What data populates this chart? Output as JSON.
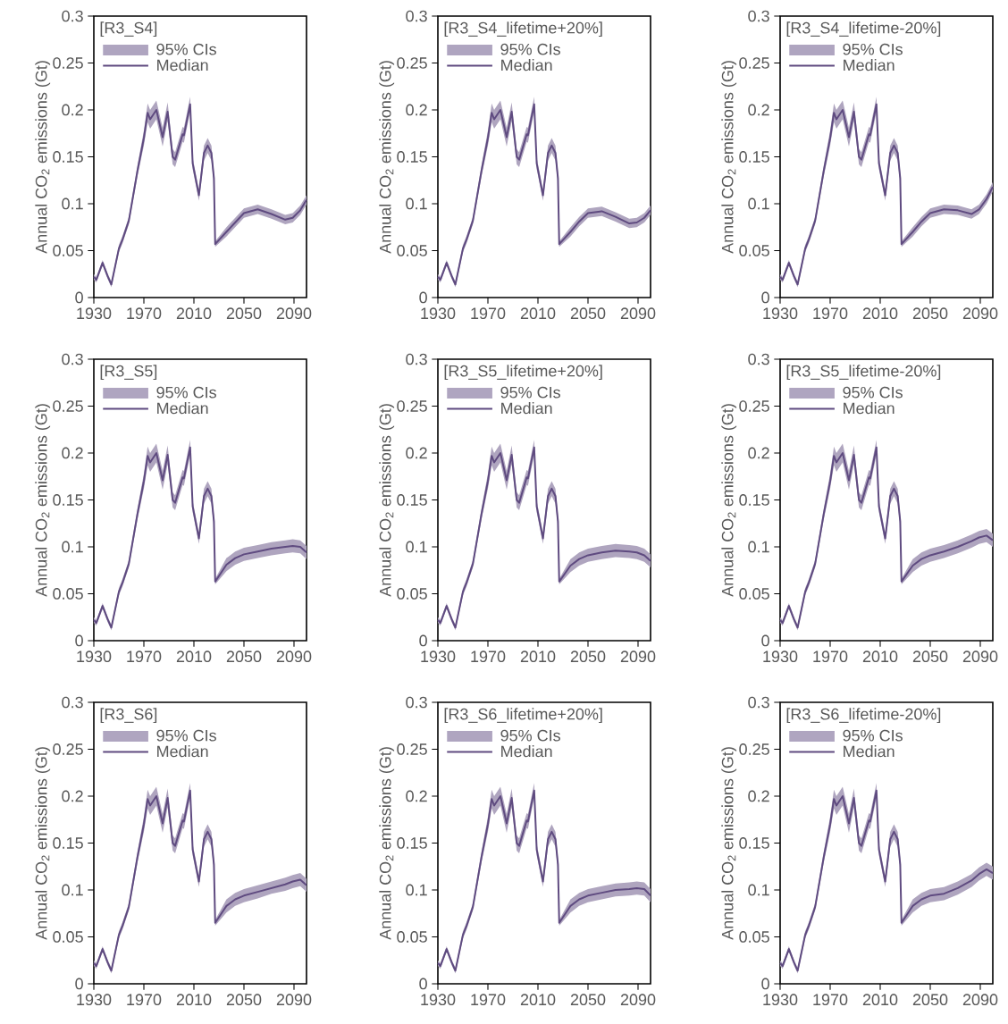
{
  "chart_data": [
    {
      "type": "line",
      "title": "[R3_S4]",
      "ylabel": "Annual CO$_{2}$ emissions (Gt)",
      "annotations": [
        "95% CIs"
      ],
      "legend": "top left",
      "xlim": [
        1930,
        2100
      ],
      "ylim": [
        0,
        0.3
      ],
      "xticks": [
        1930,
        1970,
        2010,
        2050,
        2090
      ],
      "yticks": [
        0,
        0.05,
        0.1,
        0.15,
        0.2,
        0.25,
        0.3
      ],
      "x": [
        1930,
        1932,
        1937,
        1941,
        1944,
        1950,
        1953,
        1958,
        1965,
        1970,
        1973,
        1975,
        1980,
        1985,
        1989,
        1993,
        1995,
        2001,
        2002,
        2007,
        2009,
        2014,
        2018,
        2021,
        2024,
        2026,
        2027,
        2036,
        2043,
        2050,
        2061,
        2072,
        2083,
        2089,
        2095,
        2100
      ],
      "series": [
        {
          "name": "Median",
          "color": "#5f4b80",
          "values": [
            0.022,
            0.019,
            0.037,
            0.023,
            0.014,
            0.052,
            0.062,
            0.082,
            0.136,
            0.17,
            0.197,
            0.19,
            0.2,
            0.171,
            0.198,
            0.15,
            0.147,
            0.174,
            0.173,
            0.206,
            0.143,
            0.109,
            0.154,
            0.162,
            0.154,
            0.127,
            0.057,
            0.07,
            0.08,
            0.09,
            0.094,
            0.089,
            0.083,
            0.085,
            0.093,
            0.104
          ],
          "lower": [
            0.019,
            0.016,
            0.034,
            0.02,
            0.011,
            0.048,
            0.058,
            0.078,
            0.13,
            0.162,
            0.187,
            0.18,
            0.19,
            0.161,
            0.188,
            0.142,
            0.139,
            0.166,
            0.165,
            0.198,
            0.137,
            0.103,
            0.146,
            0.154,
            0.146,
            0.121,
            0.054,
            0.065,
            0.075,
            0.085,
            0.089,
            0.084,
            0.078,
            0.08,
            0.088,
            0.099
          ],
          "upper": [
            0.025,
            0.022,
            0.04,
            0.026,
            0.017,
            0.056,
            0.066,
            0.086,
            0.142,
            0.178,
            0.207,
            0.2,
            0.21,
            0.181,
            0.208,
            0.158,
            0.155,
            0.182,
            0.181,
            0.214,
            0.149,
            0.115,
            0.162,
            0.17,
            0.162,
            0.133,
            0.06,
            0.075,
            0.085,
            0.095,
            0.099,
            0.094,
            0.088,
            0.09,
            0.098,
            0.109
          ]
        }
      ]
    },
    {
      "type": "line",
      "title": "[R3_S4_lifetime+20%]",
      "ylabel": "Annual CO$_{2}$ emissions (Gt)",
      "annotations": [
        "95% CIs"
      ],
      "legend": "top left",
      "xlim": [
        1930,
        2100
      ],
      "ylim": [
        0,
        0.3
      ],
      "xticks": [
        1930,
        1970,
        2010,
        2050,
        2090
      ],
      "yticks": [
        0,
        0.05,
        0.1,
        0.15,
        0.2,
        0.25,
        0.3
      ],
      "x": [
        1930,
        1932,
        1937,
        1941,
        1944,
        1950,
        1953,
        1958,
        1965,
        1970,
        1973,
        1975,
        1980,
        1985,
        1989,
        1993,
        1995,
        2001,
        2002,
        2007,
        2009,
        2014,
        2018,
        2021,
        2024,
        2026,
        2027,
        2036,
        2043,
        2050,
        2061,
        2072,
        2083,
        2089,
        2095,
        2100
      ],
      "series": [
        {
          "name": "Median",
          "color": "#5f4b80",
          "values": [
            0.022,
            0.019,
            0.037,
            0.023,
            0.014,
            0.052,
            0.062,
            0.082,
            0.136,
            0.17,
            0.197,
            0.19,
            0.2,
            0.171,
            0.198,
            0.15,
            0.147,
            0.174,
            0.173,
            0.206,
            0.143,
            0.109,
            0.154,
            0.162,
            0.154,
            0.127,
            0.057,
            0.07,
            0.081,
            0.09,
            0.092,
            0.086,
            0.079,
            0.08,
            0.085,
            0.093
          ],
          "lower": [
            0.019,
            0.016,
            0.034,
            0.02,
            0.011,
            0.048,
            0.058,
            0.078,
            0.13,
            0.162,
            0.187,
            0.18,
            0.19,
            0.161,
            0.188,
            0.142,
            0.139,
            0.166,
            0.165,
            0.198,
            0.137,
            0.103,
            0.146,
            0.154,
            0.146,
            0.121,
            0.054,
            0.065,
            0.076,
            0.085,
            0.087,
            0.081,
            0.074,
            0.075,
            0.08,
            0.088
          ],
          "upper": [
            0.025,
            0.022,
            0.04,
            0.026,
            0.017,
            0.056,
            0.066,
            0.086,
            0.142,
            0.178,
            0.207,
            0.2,
            0.21,
            0.181,
            0.208,
            0.158,
            0.155,
            0.182,
            0.181,
            0.214,
            0.149,
            0.115,
            0.162,
            0.17,
            0.162,
            0.133,
            0.06,
            0.075,
            0.086,
            0.095,
            0.097,
            0.091,
            0.084,
            0.085,
            0.09,
            0.098
          ]
        }
      ]
    },
    {
      "type": "line",
      "title": "[R3_S4_lifetime-20%]",
      "ylabel": "Annual CO$_{2}$ emissions (Gt)",
      "annotations": [
        "95% CIs"
      ],
      "legend": "top left",
      "xlim": [
        1930,
        2100
      ],
      "ylim": [
        0,
        0.3
      ],
      "xticks": [
        1930,
        1970,
        2010,
        2050,
        2090
      ],
      "yticks": [
        0,
        0.05,
        0.1,
        0.15,
        0.2,
        0.25,
        0.3
      ],
      "x": [
        1930,
        1932,
        1937,
        1941,
        1944,
        1950,
        1953,
        1958,
        1965,
        1970,
        1973,
        1975,
        1980,
        1985,
        1989,
        1993,
        1995,
        2001,
        2002,
        2007,
        2009,
        2014,
        2018,
        2021,
        2024,
        2026,
        2027,
        2036,
        2043,
        2050,
        2061,
        2072,
        2083,
        2089,
        2095,
        2100
      ],
      "series": [
        {
          "name": "Median",
          "color": "#5f4b80",
          "values": [
            0.022,
            0.019,
            0.037,
            0.023,
            0.014,
            0.052,
            0.062,
            0.082,
            0.136,
            0.17,
            0.197,
            0.19,
            0.2,
            0.171,
            0.198,
            0.15,
            0.147,
            0.174,
            0.173,
            0.206,
            0.143,
            0.109,
            0.154,
            0.162,
            0.154,
            0.127,
            0.057,
            0.07,
            0.081,
            0.09,
            0.094,
            0.093,
            0.089,
            0.094,
            0.105,
            0.118
          ],
          "lower": [
            0.019,
            0.016,
            0.034,
            0.02,
            0.011,
            0.048,
            0.058,
            0.078,
            0.13,
            0.162,
            0.187,
            0.18,
            0.19,
            0.161,
            0.188,
            0.142,
            0.139,
            0.166,
            0.165,
            0.198,
            0.137,
            0.103,
            0.146,
            0.154,
            0.146,
            0.121,
            0.054,
            0.065,
            0.076,
            0.085,
            0.089,
            0.088,
            0.084,
            0.089,
            0.1,
            0.113
          ],
          "upper": [
            0.025,
            0.022,
            0.04,
            0.026,
            0.017,
            0.056,
            0.066,
            0.086,
            0.142,
            0.178,
            0.207,
            0.2,
            0.21,
            0.181,
            0.208,
            0.158,
            0.155,
            0.182,
            0.181,
            0.214,
            0.149,
            0.115,
            0.162,
            0.17,
            0.162,
            0.133,
            0.06,
            0.075,
            0.086,
            0.095,
            0.099,
            0.098,
            0.094,
            0.099,
            0.11,
            0.123
          ]
        }
      ]
    },
    {
      "type": "line",
      "title": "[R3_S5]",
      "ylabel": "Annual CO$_{2}$ emissions (Gt)",
      "annotations": [
        "95% CIs"
      ],
      "legend": "top left",
      "xlim": [
        1930,
        2100
      ],
      "ylim": [
        0,
        0.3
      ],
      "xticks": [
        1930,
        1970,
        2010,
        2050,
        2090
      ],
      "yticks": [
        0,
        0.05,
        0.1,
        0.15,
        0.2,
        0.25,
        0.3
      ],
      "x": [
        1930,
        1932,
        1937,
        1941,
        1944,
        1950,
        1953,
        1958,
        1965,
        1970,
        1973,
        1975,
        1980,
        1985,
        1989,
        1993,
        1995,
        2001,
        2002,
        2007,
        2009,
        2014,
        2018,
        2021,
        2024,
        2026,
        2027,
        2036,
        2043,
        2050,
        2061,
        2072,
        2083,
        2089,
        2095,
        2100
      ],
      "series": [
        {
          "name": "Median",
          "color": "#5f4b80",
          "values": [
            0.022,
            0.019,
            0.037,
            0.023,
            0.014,
            0.052,
            0.062,
            0.082,
            0.136,
            0.17,
            0.197,
            0.19,
            0.2,
            0.171,
            0.198,
            0.15,
            0.147,
            0.174,
            0.173,
            0.206,
            0.143,
            0.109,
            0.154,
            0.162,
            0.154,
            0.127,
            0.063,
            0.081,
            0.088,
            0.092,
            0.095,
            0.098,
            0.1,
            0.101,
            0.1,
            0.094
          ],
          "lower": [
            0.019,
            0.016,
            0.034,
            0.02,
            0.011,
            0.048,
            0.058,
            0.078,
            0.13,
            0.162,
            0.187,
            0.18,
            0.19,
            0.161,
            0.188,
            0.142,
            0.139,
            0.166,
            0.165,
            0.198,
            0.137,
            0.103,
            0.146,
            0.154,
            0.146,
            0.121,
            0.06,
            0.074,
            0.081,
            0.085,
            0.088,
            0.091,
            0.093,
            0.094,
            0.093,
            0.087
          ],
          "upper": [
            0.025,
            0.022,
            0.04,
            0.026,
            0.017,
            0.056,
            0.066,
            0.086,
            0.142,
            0.178,
            0.207,
            0.2,
            0.21,
            0.181,
            0.208,
            0.158,
            0.155,
            0.182,
            0.181,
            0.214,
            0.149,
            0.115,
            0.162,
            0.17,
            0.162,
            0.133,
            0.066,
            0.088,
            0.095,
            0.099,
            0.102,
            0.105,
            0.107,
            0.108,
            0.107,
            0.101
          ]
        }
      ]
    },
    {
      "type": "line",
      "title": "[R3_S5_lifetime+20%]",
      "ylabel": "Annual CO$_{2}$ emissions (Gt)",
      "annotations": [
        "95% CIs"
      ],
      "legend": "top left",
      "xlim": [
        1930,
        2100
      ],
      "ylim": [
        0,
        0.3
      ],
      "xticks": [
        1930,
        1970,
        2010,
        2050,
        2090
      ],
      "yticks": [
        0,
        0.05,
        0.1,
        0.15,
        0.2,
        0.25,
        0.3
      ],
      "x": [
        1930,
        1932,
        1937,
        1941,
        1944,
        1950,
        1953,
        1958,
        1965,
        1970,
        1973,
        1975,
        1980,
        1985,
        1989,
        1993,
        1995,
        2001,
        2002,
        2007,
        2009,
        2014,
        2018,
        2021,
        2024,
        2026,
        2027,
        2036,
        2043,
        2050,
        2061,
        2072,
        2083,
        2089,
        2095,
        2100
      ],
      "series": [
        {
          "name": "Median",
          "color": "#5f4b80",
          "values": [
            0.022,
            0.019,
            0.037,
            0.023,
            0.014,
            0.052,
            0.062,
            0.082,
            0.136,
            0.17,
            0.197,
            0.19,
            0.2,
            0.171,
            0.198,
            0.15,
            0.147,
            0.174,
            0.173,
            0.206,
            0.143,
            0.109,
            0.154,
            0.162,
            0.154,
            0.127,
            0.063,
            0.08,
            0.087,
            0.091,
            0.094,
            0.096,
            0.095,
            0.094,
            0.091,
            0.085
          ],
          "lower": [
            0.019,
            0.016,
            0.034,
            0.02,
            0.011,
            0.048,
            0.058,
            0.078,
            0.13,
            0.162,
            0.187,
            0.18,
            0.19,
            0.161,
            0.188,
            0.142,
            0.139,
            0.166,
            0.165,
            0.198,
            0.137,
            0.103,
            0.146,
            0.154,
            0.146,
            0.121,
            0.06,
            0.073,
            0.08,
            0.084,
            0.087,
            0.089,
            0.088,
            0.087,
            0.084,
            0.078
          ],
          "upper": [
            0.025,
            0.022,
            0.04,
            0.026,
            0.017,
            0.056,
            0.066,
            0.086,
            0.142,
            0.178,
            0.207,
            0.2,
            0.21,
            0.181,
            0.208,
            0.158,
            0.155,
            0.182,
            0.181,
            0.214,
            0.149,
            0.115,
            0.162,
            0.17,
            0.162,
            0.133,
            0.066,
            0.087,
            0.094,
            0.098,
            0.101,
            0.103,
            0.102,
            0.101,
            0.098,
            0.092
          ]
        }
      ]
    },
    {
      "type": "line",
      "title": "[R3_S5_lifetime-20%]",
      "ylabel": "Annual CO$_{2}$ emissions (Gt)",
      "annotations": [
        "95% CIs"
      ],
      "legend": "top left",
      "xlim": [
        1930,
        2100
      ],
      "ylim": [
        0,
        0.3
      ],
      "xticks": [
        1930,
        1970,
        2010,
        2050,
        2090
      ],
      "yticks": [
        0,
        0.05,
        0.1,
        0.15,
        0.2,
        0.25,
        0.3
      ],
      "x": [
        1930,
        1932,
        1937,
        1941,
        1944,
        1950,
        1953,
        1958,
        1965,
        1970,
        1973,
        1975,
        1980,
        1985,
        1989,
        1993,
        1995,
        2001,
        2002,
        2007,
        2009,
        2014,
        2018,
        2021,
        2024,
        2026,
        2027,
        2036,
        2043,
        2050,
        2061,
        2072,
        2083,
        2089,
        2095,
        2100
      ],
      "series": [
        {
          "name": "Median",
          "color": "#5f4b80",
          "values": [
            0.022,
            0.019,
            0.037,
            0.023,
            0.014,
            0.052,
            0.062,
            0.082,
            0.136,
            0.17,
            0.197,
            0.19,
            0.2,
            0.171,
            0.198,
            0.15,
            0.147,
            0.174,
            0.173,
            0.206,
            0.143,
            0.109,
            0.154,
            0.162,
            0.154,
            0.127,
            0.063,
            0.08,
            0.087,
            0.091,
            0.095,
            0.1,
            0.106,
            0.11,
            0.112,
            0.107
          ],
          "lower": [
            0.019,
            0.016,
            0.034,
            0.02,
            0.011,
            0.048,
            0.058,
            0.078,
            0.13,
            0.162,
            0.187,
            0.18,
            0.19,
            0.161,
            0.188,
            0.142,
            0.139,
            0.166,
            0.165,
            0.198,
            0.137,
            0.103,
            0.146,
            0.154,
            0.146,
            0.121,
            0.06,
            0.073,
            0.08,
            0.084,
            0.088,
            0.093,
            0.099,
            0.103,
            0.105,
            0.1
          ],
          "upper": [
            0.025,
            0.022,
            0.04,
            0.026,
            0.017,
            0.056,
            0.066,
            0.086,
            0.142,
            0.178,
            0.207,
            0.2,
            0.21,
            0.181,
            0.208,
            0.158,
            0.155,
            0.182,
            0.181,
            0.214,
            0.149,
            0.115,
            0.162,
            0.17,
            0.162,
            0.133,
            0.066,
            0.087,
            0.094,
            0.098,
            0.102,
            0.107,
            0.113,
            0.117,
            0.119,
            0.114
          ]
        }
      ]
    },
    {
      "type": "line",
      "title": "[R3_S6]",
      "ylabel": "Annual CO$_{2}$ emissions (Gt)",
      "annotations": [
        "95% CIs"
      ],
      "legend": "top left",
      "xlim": [
        1930,
        2100
      ],
      "ylim": [
        0,
        0.3
      ],
      "xticks": [
        1930,
        1970,
        2010,
        2050,
        2090
      ],
      "yticks": [
        0,
        0.05,
        0.1,
        0.15,
        0.2,
        0.25,
        0.3
      ],
      "x": [
        1930,
        1932,
        1937,
        1941,
        1944,
        1950,
        1953,
        1958,
        1965,
        1970,
        1973,
        1975,
        1980,
        1985,
        1989,
        1993,
        1995,
        2001,
        2002,
        2007,
        2009,
        2014,
        2018,
        2021,
        2024,
        2026,
        2027,
        2036,
        2043,
        2050,
        2061,
        2072,
        2083,
        2089,
        2095,
        2100
      ],
      "series": [
        {
          "name": "Median",
          "color": "#5f4b80",
          "values": [
            0.022,
            0.019,
            0.037,
            0.023,
            0.014,
            0.052,
            0.062,
            0.082,
            0.136,
            0.17,
            0.197,
            0.19,
            0.2,
            0.171,
            0.198,
            0.15,
            0.147,
            0.174,
            0.173,
            0.206,
            0.143,
            0.109,
            0.154,
            0.162,
            0.154,
            0.127,
            0.065,
            0.083,
            0.09,
            0.094,
            0.098,
            0.102,
            0.106,
            0.109,
            0.111,
            0.105
          ],
          "lower": [
            0.019,
            0.016,
            0.034,
            0.02,
            0.011,
            0.048,
            0.058,
            0.078,
            0.13,
            0.162,
            0.187,
            0.18,
            0.19,
            0.161,
            0.188,
            0.142,
            0.139,
            0.166,
            0.165,
            0.198,
            0.137,
            0.103,
            0.146,
            0.154,
            0.146,
            0.121,
            0.062,
            0.076,
            0.083,
            0.087,
            0.091,
            0.096,
            0.099,
            0.102,
            0.104,
            0.098
          ],
          "upper": [
            0.025,
            0.022,
            0.04,
            0.026,
            0.017,
            0.056,
            0.066,
            0.086,
            0.142,
            0.178,
            0.207,
            0.2,
            0.21,
            0.181,
            0.208,
            0.158,
            0.155,
            0.182,
            0.181,
            0.214,
            0.149,
            0.115,
            0.162,
            0.17,
            0.162,
            0.133,
            0.068,
            0.09,
            0.097,
            0.101,
            0.105,
            0.109,
            0.113,
            0.116,
            0.118,
            0.112
          ]
        }
      ]
    },
    {
      "type": "line",
      "title": "[R3_S6_lifetime+20%]",
      "ylabel": "Annual CO$_{2}$ emissions (Gt)",
      "annotations": [
        "95% CIs"
      ],
      "legend": "top left",
      "xlim": [
        1930,
        2100
      ],
      "ylim": [
        0,
        0.3
      ],
      "xticks": [
        1930,
        1970,
        2010,
        2050,
        2090
      ],
      "yticks": [
        0,
        0.05,
        0.1,
        0.15,
        0.2,
        0.25,
        0.3
      ],
      "x": [
        1930,
        1932,
        1937,
        1941,
        1944,
        1950,
        1953,
        1958,
        1965,
        1970,
        1973,
        1975,
        1980,
        1985,
        1989,
        1993,
        1995,
        2001,
        2002,
        2007,
        2009,
        2014,
        2018,
        2021,
        2024,
        2026,
        2027,
        2036,
        2043,
        2050,
        2061,
        2072,
        2083,
        2089,
        2095,
        2100
      ],
      "series": [
        {
          "name": "Median",
          "color": "#5f4b80",
          "values": [
            0.022,
            0.019,
            0.037,
            0.023,
            0.014,
            0.052,
            0.062,
            0.082,
            0.136,
            0.17,
            0.197,
            0.19,
            0.2,
            0.171,
            0.198,
            0.15,
            0.147,
            0.174,
            0.173,
            0.206,
            0.143,
            0.109,
            0.154,
            0.162,
            0.154,
            0.127,
            0.065,
            0.083,
            0.09,
            0.094,
            0.097,
            0.1,
            0.101,
            0.102,
            0.101,
            0.094
          ],
          "lower": [
            0.019,
            0.016,
            0.034,
            0.02,
            0.011,
            0.048,
            0.058,
            0.078,
            0.13,
            0.162,
            0.187,
            0.18,
            0.19,
            0.161,
            0.188,
            0.142,
            0.139,
            0.166,
            0.165,
            0.198,
            0.137,
            0.103,
            0.146,
            0.154,
            0.146,
            0.121,
            0.062,
            0.076,
            0.083,
            0.087,
            0.09,
            0.093,
            0.094,
            0.095,
            0.094,
            0.087
          ],
          "upper": [
            0.025,
            0.022,
            0.04,
            0.026,
            0.017,
            0.056,
            0.066,
            0.086,
            0.142,
            0.178,
            0.207,
            0.2,
            0.21,
            0.181,
            0.208,
            0.158,
            0.155,
            0.182,
            0.181,
            0.214,
            0.149,
            0.115,
            0.162,
            0.17,
            0.162,
            0.133,
            0.068,
            0.09,
            0.097,
            0.101,
            0.104,
            0.107,
            0.108,
            0.109,
            0.108,
            0.101
          ]
        }
      ]
    },
    {
      "type": "line",
      "title": "[R3_S6_lifetime-20%]",
      "ylabel": "Annual CO$_{2}$ emissions (Gt)",
      "annotations": [
        "95% CIs"
      ],
      "legend": "top left",
      "xlim": [
        1930,
        2100
      ],
      "ylim": [
        0,
        0.3
      ],
      "xticks": [
        1930,
        1970,
        2010,
        2050,
        2090
      ],
      "yticks": [
        0,
        0.05,
        0.1,
        0.15,
        0.2,
        0.25,
        0.3
      ],
      "x": [
        1930,
        1932,
        1937,
        1941,
        1944,
        1950,
        1953,
        1958,
        1965,
        1970,
        1973,
        1975,
        1980,
        1985,
        1989,
        1993,
        1995,
        2001,
        2002,
        2007,
        2009,
        2014,
        2018,
        2021,
        2024,
        2026,
        2027,
        2036,
        2043,
        2050,
        2061,
        2072,
        2083,
        2089,
        2095,
        2100
      ],
      "series": [
        {
          "name": "Median",
          "color": "#5f4b80",
          "values": [
            0.022,
            0.019,
            0.037,
            0.023,
            0.014,
            0.052,
            0.062,
            0.082,
            0.136,
            0.17,
            0.197,
            0.19,
            0.2,
            0.171,
            0.198,
            0.15,
            0.147,
            0.174,
            0.173,
            0.206,
            0.143,
            0.109,
            0.154,
            0.162,
            0.154,
            0.127,
            0.065,
            0.083,
            0.09,
            0.094,
            0.096,
            0.102,
            0.11,
            0.117,
            0.122,
            0.118
          ],
          "lower": [
            0.019,
            0.016,
            0.034,
            0.02,
            0.011,
            0.048,
            0.058,
            0.078,
            0.13,
            0.162,
            0.187,
            0.18,
            0.19,
            0.161,
            0.188,
            0.142,
            0.139,
            0.166,
            0.165,
            0.198,
            0.137,
            0.103,
            0.146,
            0.154,
            0.146,
            0.121,
            0.062,
            0.076,
            0.083,
            0.087,
            0.089,
            0.095,
            0.103,
            0.11,
            0.115,
            0.111
          ],
          "upper": [
            0.025,
            0.022,
            0.04,
            0.026,
            0.017,
            0.056,
            0.066,
            0.086,
            0.142,
            0.178,
            0.207,
            0.2,
            0.21,
            0.181,
            0.208,
            0.158,
            0.155,
            0.182,
            0.181,
            0.214,
            0.149,
            0.115,
            0.162,
            0.17,
            0.162,
            0.133,
            0.068,
            0.09,
            0.097,
            0.101,
            0.103,
            0.109,
            0.117,
            0.124,
            0.129,
            0.125
          ]
        }
      ]
    }
  ]
}
